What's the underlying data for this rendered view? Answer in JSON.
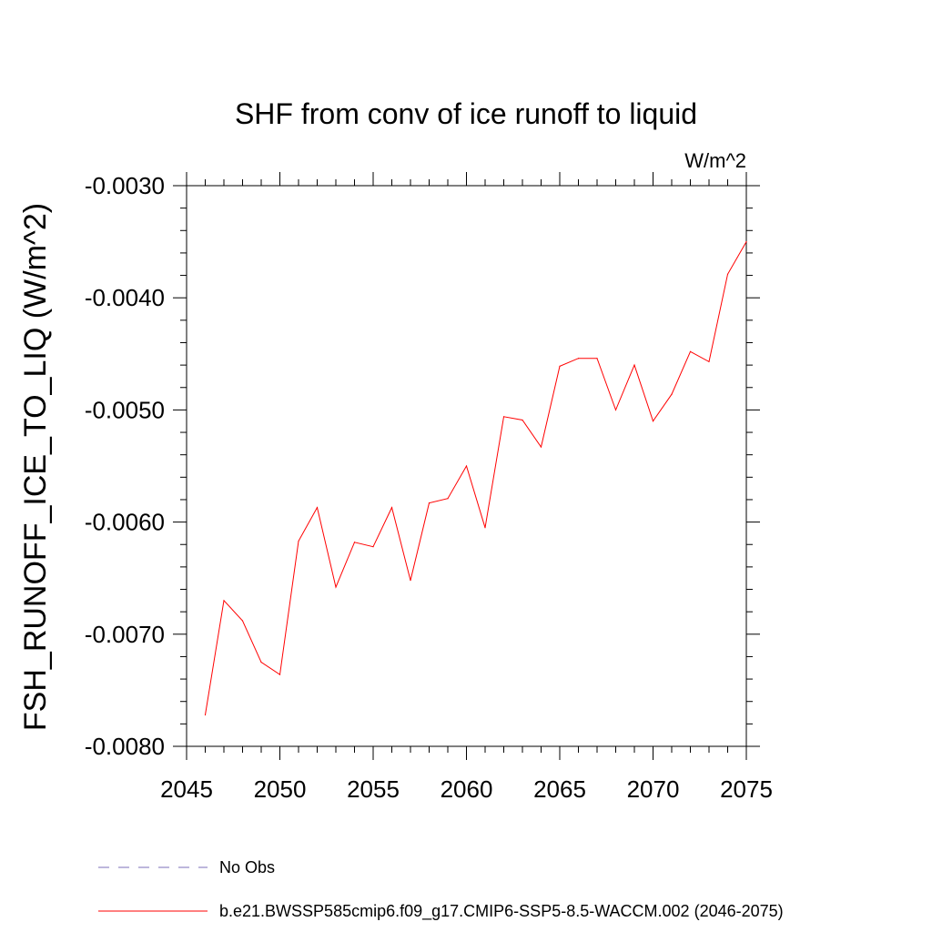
{
  "chart_data": {
    "type": "line",
    "title": "SHF from conv of ice runoff to liquid",
    "units_label": "W/m^2",
    "ylabel": "FSH_RUNOFF_ICE_TO_LIQ  (W/m^2)",
    "xlabel": "",
    "xlim": [
      2045,
      2075
    ],
    "ylim": [
      -0.008,
      -0.003
    ],
    "xticks": [
      2045,
      2050,
      2055,
      2060,
      2065,
      2070,
      2075
    ],
    "xtick_labels": [
      "2045",
      "2050",
      "2055",
      "2060",
      "2065",
      "2070",
      "2075"
    ],
    "yticks": [
      -0.008,
      -0.007,
      -0.006,
      -0.005,
      -0.004,
      -0.003
    ],
    "ytick_labels": [
      "-0.0080",
      "-0.0070",
      "-0.0060",
      "-0.0050",
      "-0.0040",
      "-0.0030"
    ],
    "grid": false,
    "legend_position": "bottom",
    "series": [
      {
        "name": "b.e21.BWSSP585cmip6.f09_g17.CMIP6-SSP5-8.5-WACCM.002 (2046-2075)",
        "color": "#ff0000",
        "style": "solid",
        "x": [
          2046,
          2047,
          2048,
          2049,
          2050,
          2051,
          2052,
          2053,
          2054,
          2055,
          2056,
          2057,
          2058,
          2059,
          2060,
          2061,
          2062,
          2063,
          2064,
          2065,
          2066,
          2067,
          2068,
          2069,
          2070,
          2071,
          2072,
          2073,
          2074,
          2075
        ],
        "y": [
          -0.00772,
          -0.0067,
          -0.00688,
          -0.00725,
          -0.00736,
          -0.00617,
          -0.00587,
          -0.00658,
          -0.00618,
          -0.00622,
          -0.00587,
          -0.00652,
          -0.00583,
          -0.00579,
          -0.0055,
          -0.00605,
          -0.00506,
          -0.00509,
          -0.00533,
          -0.00461,
          -0.00454,
          -0.00454,
          -0.005,
          -0.0046,
          -0.0051,
          -0.00486,
          -0.00448,
          -0.00457,
          -0.00379,
          -0.0035
        ]
      },
      {
        "name": "No Obs",
        "color": "#7b6fb8",
        "style": "dashed",
        "x": [],
        "y": []
      }
    ]
  }
}
